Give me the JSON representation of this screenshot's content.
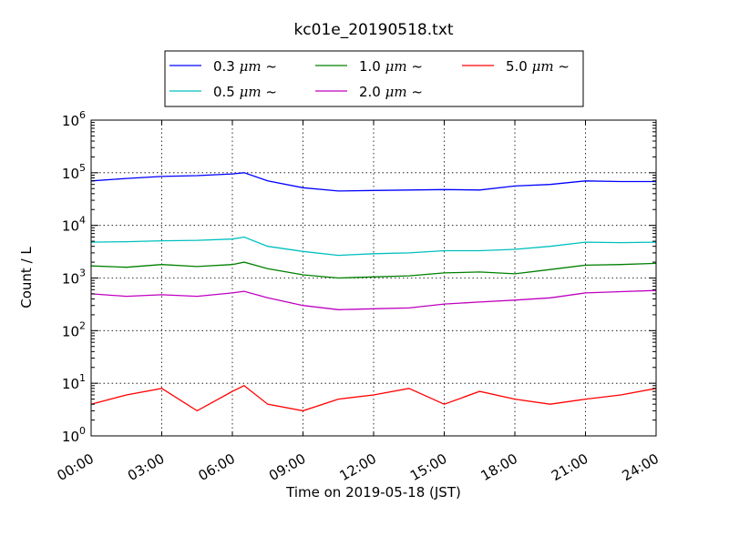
{
  "chart_data": {
    "type": "line",
    "title": "kc01e_20190518.txt",
    "xlabel": "Time on 2019-05-18 (JST)",
    "ylabel": "Count / L",
    "yscale": "log",
    "ylim": [
      1,
      1000000
    ],
    "xlim": [
      "00:00",
      "24:00"
    ],
    "grid": true,
    "legend_position": "top-center",
    "x_ticks": [
      "00:00",
      "03:00",
      "06:00",
      "09:00",
      "12:00",
      "15:00",
      "18:00",
      "21:00",
      "24:00"
    ],
    "y_ticks": [
      {
        "base": "10",
        "exp": "0",
        "value": 1
      },
      {
        "base": "10",
        "exp": "1",
        "value": 10
      },
      {
        "base": "10",
        "exp": "2",
        "value": 100
      },
      {
        "base": "10",
        "exp": "3",
        "value": 1000
      },
      {
        "base": "10",
        "exp": "4",
        "value": 10000
      },
      {
        "base": "10",
        "exp": "5",
        "value": 100000
      },
      {
        "base": "10",
        "exp": "6",
        "value": 1000000
      }
    ],
    "x_hours": [
      0,
      1.5,
      3,
      4.5,
      6,
      6.5,
      7.5,
      9,
      10.5,
      12,
      13.5,
      15,
      16.5,
      18,
      19.5,
      21,
      22.5,
      24
    ],
    "series": [
      {
        "name_size": "0.3",
        "name_unit": "μm",
        "name_suffix": "~",
        "color": "#0000ff",
        "values": [
          70000,
          78000,
          85000,
          88000,
          95000,
          100000,
          70000,
          52000,
          45000,
          46000,
          47000,
          48000,
          47000,
          56000,
          60000,
          70000,
          68000,
          68000
        ]
      },
      {
        "name_size": "0.5",
        "name_unit": "μm",
        "name_suffix": "~",
        "color": "#00bfbf",
        "values": [
          4800,
          4900,
          5100,
          5200,
          5500,
          6000,
          4000,
          3200,
          2700,
          2900,
          3000,
          3300,
          3300,
          3500,
          4000,
          4800,
          4700,
          4800
        ]
      },
      {
        "name_size": "1.0",
        "name_unit": "μm",
        "name_suffix": "~",
        "color": "#008000",
        "values": [
          1700,
          1600,
          1800,
          1650,
          1800,
          2000,
          1500,
          1150,
          1000,
          1050,
          1100,
          1250,
          1300,
          1200,
          1450,
          1750,
          1800,
          1900
        ]
      },
      {
        "name_size": "2.0",
        "name_unit": "μm",
        "name_suffix": "~",
        "color": "#bf00bf",
        "values": [
          500,
          450,
          480,
          450,
          520,
          560,
          420,
          300,
          250,
          260,
          270,
          320,
          350,
          380,
          420,
          520,
          550,
          580
        ]
      },
      {
        "name_size": "5.0",
        "name_unit": "μm",
        "name_suffix": "~",
        "color": "#ff0000",
        "values": [
          4,
          6,
          8,
          3,
          7,
          9,
          4,
          3,
          5,
          6,
          8,
          4,
          7,
          5,
          4,
          5,
          6,
          8
        ]
      }
    ]
  }
}
